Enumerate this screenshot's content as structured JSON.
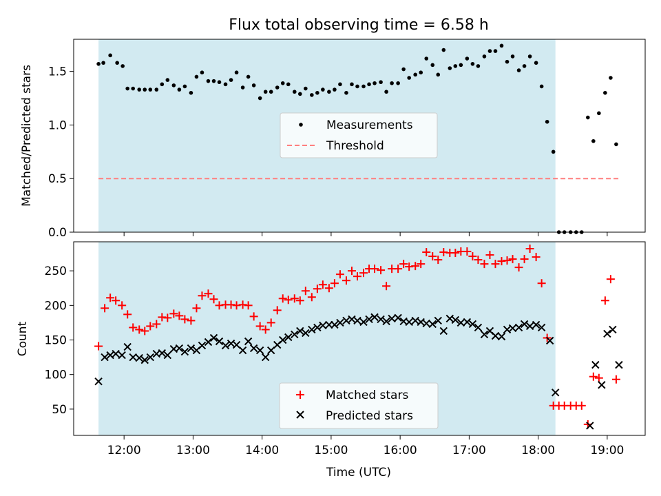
{
  "title": "Flux total observing time = 6.58 h",
  "xlabel": "Time (UTC)",
  "x_ticks": [
    "12:00",
    "13:00",
    "14:00",
    "15:00",
    "16:00",
    "17:00",
    "18:00",
    "19:00"
  ],
  "x_tick_values": [
    12.0,
    13.0,
    14.0,
    15.0,
    16.0,
    17.0,
    18.0,
    19.0
  ],
  "xlim": [
    11.27,
    19.55
  ],
  "observing_window": [
    11.63,
    18.25
  ],
  "colors": {
    "observing_window": "#ADD8E6",
    "measurements": "#000000",
    "threshold": "#FF7F7F",
    "matched": "#FF0000",
    "predicted": "#000000"
  },
  "chart_data": [
    {
      "type": "scatter",
      "ylabel": "Matched/Predicted stars",
      "ylim": [
        0,
        1.8
      ],
      "y_ticks": [
        "0.0",
        "0.5",
        "1.0",
        "1.5"
      ],
      "y_tick_values": [
        0.0,
        0.5,
        1.0,
        1.5
      ],
      "legend_position": "center",
      "series": [
        {
          "name": "Measurements",
          "marker": "dot",
          "x": [
            11.63,
            11.7,
            11.8,
            11.9,
            11.98,
            12.05,
            12.13,
            12.22,
            12.3,
            12.38,
            12.47,
            12.55,
            12.63,
            12.72,
            12.8,
            12.88,
            12.97,
            13.05,
            13.13,
            13.22,
            13.3,
            13.38,
            13.47,
            13.55,
            13.63,
            13.72,
            13.8,
            13.88,
            13.97,
            14.05,
            14.13,
            14.22,
            14.3,
            14.38,
            14.47,
            14.55,
            14.63,
            14.72,
            14.8,
            14.88,
            14.97,
            15.05,
            15.13,
            15.22,
            15.3,
            15.38,
            15.47,
            15.55,
            15.63,
            15.72,
            15.8,
            15.88,
            15.97,
            16.05,
            16.13,
            16.22,
            16.3,
            16.38,
            16.47,
            16.55,
            16.63,
            16.72,
            16.8,
            16.88,
            16.97,
            17.05,
            17.13,
            17.22,
            17.3,
            17.38,
            17.47,
            17.55,
            17.63,
            17.72,
            17.8,
            17.88,
            17.97,
            18.05,
            18.13,
            18.22,
            18.3,
            18.38,
            18.47,
            18.55,
            18.63,
            18.72,
            18.8,
            18.88,
            18.97,
            19.05,
            19.13
          ],
          "y": [
            1.57,
            1.58,
            1.65,
            1.58,
            1.55,
            1.34,
            1.34,
            1.33,
            1.33,
            1.33,
            1.33,
            1.38,
            1.42,
            1.37,
            1.33,
            1.36,
            1.3,
            1.45,
            1.49,
            1.41,
            1.41,
            1.4,
            1.38,
            1.42,
            1.49,
            1.35,
            1.45,
            1.37,
            1.25,
            1.31,
            1.31,
            1.35,
            1.39,
            1.38,
            1.31,
            1.29,
            1.34,
            1.28,
            1.3,
            1.33,
            1.31,
            1.33,
            1.38,
            1.3,
            1.38,
            1.36,
            1.36,
            1.38,
            1.39,
            1.4,
            1.31,
            1.39,
            1.39,
            1.52,
            1.44,
            1.47,
            1.49,
            1.62,
            1.56,
            1.47,
            1.7,
            1.53,
            1.55,
            1.56,
            1.62,
            1.57,
            1.55,
            1.64,
            1.69,
            1.69,
            1.74,
            1.59,
            1.64,
            1.51,
            1.55,
            1.64,
            1.58,
            1.36,
            1.03,
            0.75,
            0.0,
            0.0,
            0.0,
            0.0,
            0.0,
            1.07,
            0.85,
            1.11,
            1.3,
            1.44,
            0.82
          ]
        },
        {
          "name": "Threshold",
          "type": "line",
          "style": "dashed",
          "x": [
            11.63,
            19.18
          ],
          "y": [
            0.5,
            0.5
          ]
        }
      ]
    },
    {
      "type": "scatter",
      "ylabel": "Count",
      "ylim": [
        12,
        292
      ],
      "y_ticks": [
        "50",
        "100",
        "150",
        "200",
        "250"
      ],
      "y_tick_values": [
        50,
        100,
        150,
        200,
        250
      ],
      "legend_position": "lower center",
      "series": [
        {
          "name": "Matched stars",
          "marker": "plus",
          "x": [
            11.63,
            11.72,
            11.8,
            11.88,
            11.97,
            12.05,
            12.13,
            12.22,
            12.3,
            12.38,
            12.47,
            12.55,
            12.63,
            12.72,
            12.8,
            12.88,
            12.97,
            13.05,
            13.13,
            13.22,
            13.3,
            13.38,
            13.47,
            13.55,
            13.63,
            13.72,
            13.8,
            13.88,
            13.97,
            14.05,
            14.13,
            14.22,
            14.3,
            14.38,
            14.47,
            14.55,
            14.63,
            14.72,
            14.8,
            14.88,
            14.97,
            15.05,
            15.13,
            15.22,
            15.3,
            15.38,
            15.47,
            15.55,
            15.63,
            15.72,
            15.8,
            15.88,
            15.97,
            16.05,
            16.13,
            16.22,
            16.3,
            16.38,
            16.47,
            16.55,
            16.63,
            16.72,
            16.8,
            16.88,
            16.97,
            17.05,
            17.13,
            17.22,
            17.3,
            17.38,
            17.47,
            17.55,
            17.63,
            17.72,
            17.8,
            17.88,
            17.97,
            18.05,
            18.13,
            18.22,
            18.3,
            18.38,
            18.47,
            18.55,
            18.63,
            18.72,
            18.8,
            18.88,
            18.97,
            19.05,
            19.13
          ],
          "y": [
            141,
            196,
            211,
            207,
            200,
            187,
            168,
            165,
            163,
            170,
            173,
            183,
            182,
            188,
            185,
            180,
            178,
            196,
            214,
            217,
            209,
            200,
            201,
            201,
            200,
            201,
            200,
            184,
            170,
            165,
            175,
            193,
            210,
            208,
            210,
            207,
            221,
            212,
            224,
            230,
            225,
            232,
            245,
            236,
            250,
            242,
            247,
            253,
            253,
            251,
            228,
            253,
            253,
            260,
            256,
            257,
            260,
            277,
            271,
            266,
            277,
            276,
            276,
            278,
            278,
            271,
            266,
            260,
            273,
            260,
            264,
            265,
            267,
            255,
            267,
            282,
            270,
            232,
            153,
            55,
            55,
            55,
            55,
            55,
            55,
            28,
            97,
            95,
            207,
            238,
            93
          ]
        },
        {
          "name": "Predicted stars",
          "marker": "x",
          "x": [
            11.63,
            11.72,
            11.8,
            11.88,
            11.97,
            12.05,
            12.13,
            12.22,
            12.3,
            12.38,
            12.47,
            12.55,
            12.63,
            12.72,
            12.8,
            12.88,
            12.97,
            13.05,
            13.13,
            13.22,
            13.3,
            13.38,
            13.47,
            13.55,
            13.63,
            13.72,
            13.8,
            13.88,
            13.97,
            14.05,
            14.13,
            14.22,
            14.3,
            14.38,
            14.47,
            14.55,
            14.63,
            14.72,
            14.8,
            14.88,
            14.97,
            15.05,
            15.13,
            15.22,
            15.3,
            15.38,
            15.47,
            15.55,
            15.63,
            15.72,
            15.8,
            15.88,
            15.97,
            16.05,
            16.13,
            16.22,
            16.3,
            16.38,
            16.47,
            16.55,
            16.63,
            16.72,
            16.8,
            16.88,
            16.97,
            17.05,
            17.13,
            17.22,
            17.3,
            17.38,
            17.47,
            17.55,
            17.63,
            17.72,
            17.8,
            17.88,
            17.97,
            18.05,
            18.17,
            18.25,
            18.75,
            18.83,
            18.92,
            19.0,
            19.08,
            19.17
          ],
          "y": [
            90,
            125,
            128,
            130,
            128,
            140,
            125,
            124,
            121,
            125,
            130,
            131,
            128,
            137,
            138,
            133,
            138,
            135,
            142,
            147,
            153,
            148,
            142,
            145,
            143,
            135,
            148,
            138,
            135,
            125,
            135,
            143,
            150,
            154,
            158,
            163,
            160,
            165,
            168,
            171,
            172,
            172,
            175,
            178,
            180,
            178,
            176,
            180,
            183,
            180,
            177,
            181,
            182,
            177,
            176,
            178,
            176,
            174,
            173,
            178,
            163,
            181,
            179,
            175,
            176,
            173,
            168,
            158,
            163,
            156,
            155,
            165,
            167,
            168,
            173,
            170,
            172,
            168,
            149,
            74,
            26,
            114,
            85,
            159,
            165,
            114
          ]
        }
      ]
    }
  ]
}
